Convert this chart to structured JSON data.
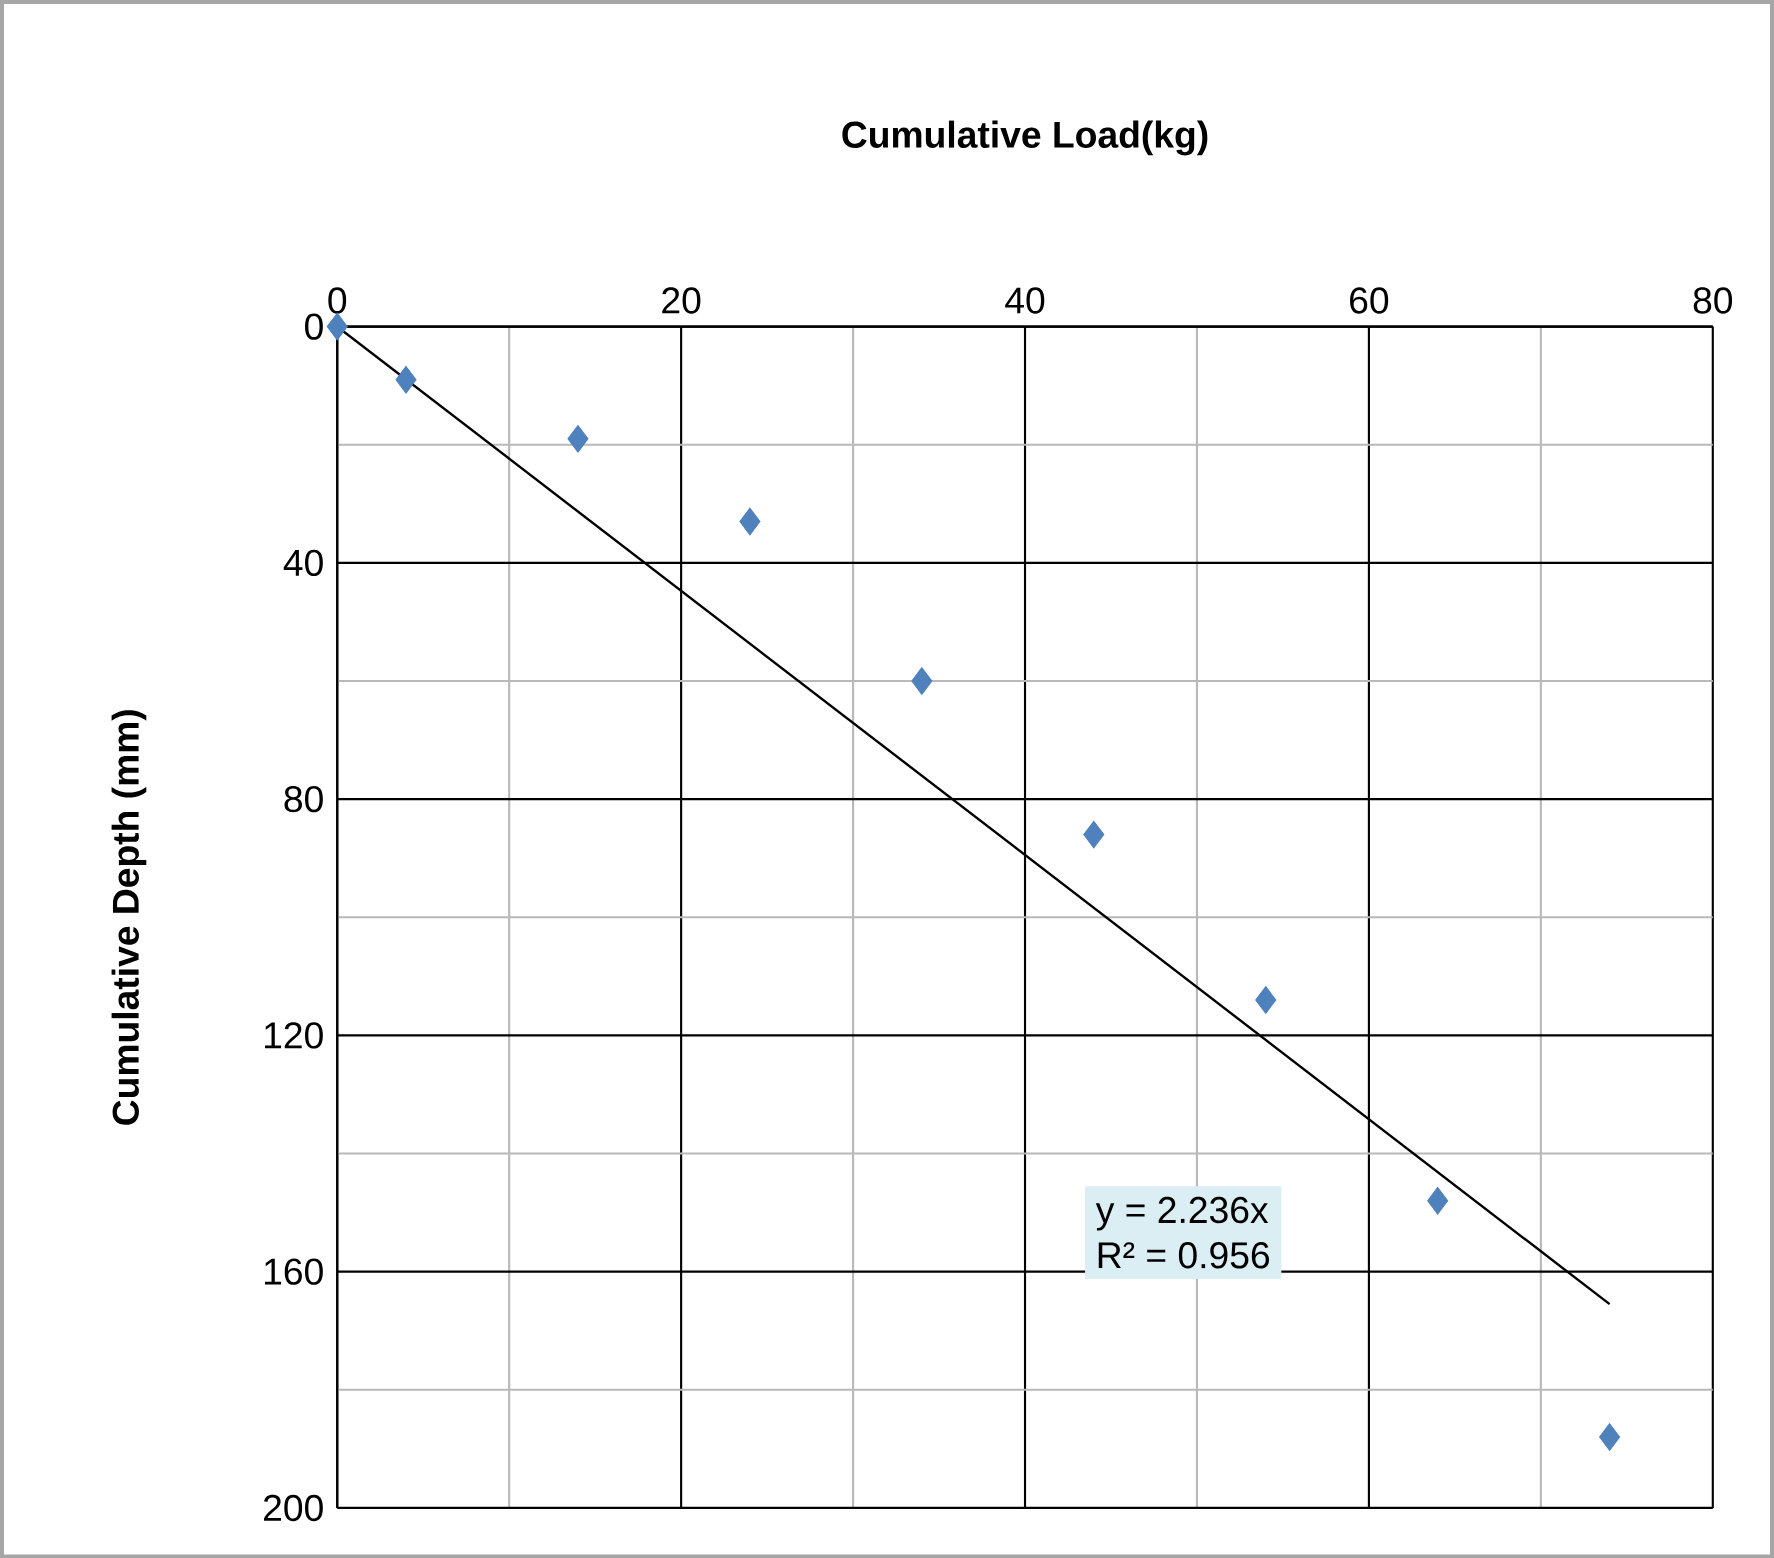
{
  "chart_data": {
    "type": "scatter",
    "xlabel": "Cumulative  Load(kg)",
    "ylabel": "Cumulative  Depth (mm)",
    "xlim": [
      0,
      80
    ],
    "xticks": [
      0,
      20,
      40,
      60,
      80
    ],
    "ylim": [
      200,
      0
    ],
    "yticks": [
      0,
      40,
      80,
      120,
      160,
      200
    ],
    "grid": true,
    "series": [
      {
        "color": "#4f81bd",
        "marker": "diamond",
        "x": [
          0,
          4,
          14,
          24,
          34,
          44,
          54,
          64,
          74
        ],
        "values": [
          0,
          9,
          19,
          33,
          60,
          86,
          114,
          148,
          188
        ]
      },
      {
        "type": "line",
        "marker": "none",
        "color": "#000000",
        "x": [
          0,
          74
        ],
        "values": [
          0,
          165.5
        ]
      }
    ],
    "annotations": [
      "y = 2.236x",
      "R² = 0.956"
    ]
  }
}
